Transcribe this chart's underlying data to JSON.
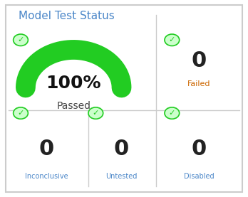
{
  "title": "Model Test Status",
  "title_color": "#4a86c8",
  "title_fontsize": 11,
  "bg_color": "#ffffff",
  "border_color": "#cccccc",
  "gauge_label": "Passed",
  "gauge_color": "#22cc22",
  "gauge_pct_text": "100%",
  "gauge_pct_fontsize": 18,
  "gauge_label_fontsize": 10,
  "failed_value": "0",
  "failed_label": "Failed",
  "failed_value_color": "#222222",
  "failed_label_color": "#cc6600",
  "inconclusive_value": "0",
  "inconclusive_label": "Inconclusive",
  "inconclusive_label_color": "#4a86c8",
  "untested_value": "0",
  "untested_label": "Untested",
  "untested_label_color": "#4a86c8",
  "disabled_value": "0",
  "disabled_label": "Disabled",
  "disabled_label_color": "#4a86c8",
  "check_color": "#22cc22",
  "check_bg": "#ccffcc",
  "divider_color": "#cccccc",
  "value_fontsize": 20,
  "label_fontsize": 8
}
